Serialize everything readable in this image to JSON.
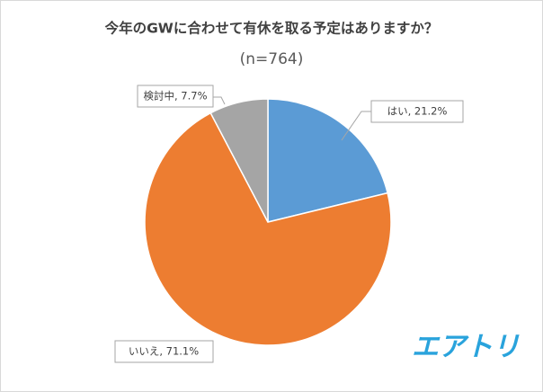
{
  "chart_data": {
    "type": "pie",
    "title": "今年のGWに合わせて有休を取る予定はありますか？",
    "subtitle": "(n=764)",
    "values": [
      21.2,
      71.1,
      7.7
    ],
    "value_labels": [
      "はい, 21.2%",
      "いいえ, 71.1%",
      "検討中, 7.7%"
    ],
    "colors": [
      "#5b9bd5",
      "#ed7d31",
      "#a5a5a5"
    ],
    "logo": "エアトリ"
  }
}
